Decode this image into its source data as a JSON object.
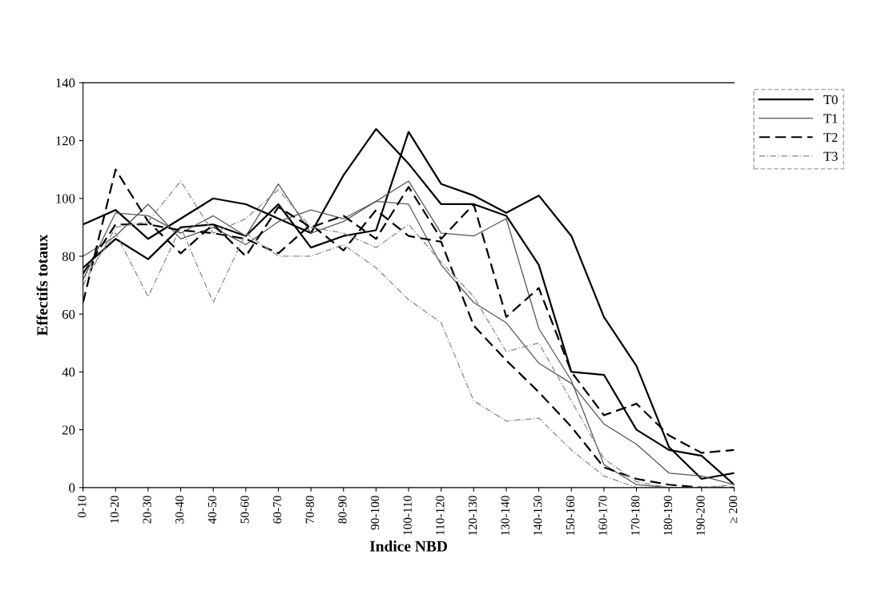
{
  "chart_data": {
    "type": "line",
    "xlabel": "Indice NBD",
    "ylabel": "Effectifs totaux",
    "categories": [
      "0-10",
      "10-20",
      "20-30",
      "30-40",
      "40-50",
      "50-60",
      "60-70",
      "70-80",
      "80-90",
      "90-100",
      "100-110",
      "110-120",
      "120-130",
      "130-140",
      "140-150",
      "150-160",
      "160-170",
      "170-180",
      "180-190",
      "190-200",
      "≥ 200"
    ],
    "ylim": [
      0,
      140
    ],
    "yticks": [
      0,
      20,
      40,
      60,
      80,
      100,
      120,
      140
    ],
    "grid": false,
    "legend": "top right",
    "marker": "none",
    "series": [
      {
        "name": "T0",
        "color": "#000000",
        "line_style": "solid",
        "values": [
          91,
          96,
          86,
          93,
          100,
          98,
          93,
          88,
          108,
          124,
          112,
          98,
          98,
          94,
          77,
          40,
          39,
          20,
          13,
          11,
          1
        ]
      },
      {
        "color": "#000000",
        "line_style": "solid",
        "values": [
          76,
          86,
          79,
          90,
          91,
          87,
          98,
          83,
          87,
          89,
          123,
          105,
          101,
          95,
          101,
          87,
          59,
          42,
          14,
          3,
          5
        ]
      },
      {
        "name": "T1",
        "color": "#555555",
        "line_style": "solid",
        "values": [
          72,
          95,
          94,
          88,
          94,
          87,
          105,
          88,
          92,
          99,
          106,
          88,
          87,
          93,
          55,
          37,
          8,
          1,
          0,
          0,
          0
        ]
      },
      {
        "color": "#555555",
        "line_style": "solid",
        "values": [
          80,
          87,
          98,
          86,
          90,
          84,
          92,
          96,
          93,
          99,
          98,
          77,
          64,
          57,
          43,
          36,
          22,
          15,
          5,
          4,
          1
        ]
      },
      {
        "name": "T2",
        "color": "#000000",
        "line_style": "dashed",
        "values": [
          64,
          110,
          92,
          81,
          91,
          80,
          97,
          90,
          94,
          86,
          104,
          86,
          98,
          59,
          69,
          40,
          25,
          29,
          18,
          12,
          13
        ]
      },
      {
        "color": "#000000",
        "line_style": "dashed",
        "values": [
          74,
          91,
          91,
          89,
          88,
          86,
          81,
          91,
          82,
          96,
          87,
          85,
          56,
          44,
          33,
          21,
          7,
          3,
          1,
          0,
          0
        ]
      },
      {
        "name": "T3",
        "color": "#888888",
        "line_style": "dotted",
        "values": [
          72,
          88,
          66,
          90,
          64,
          88,
          80,
          80,
          84,
          76,
          65,
          57,
          30,
          23,
          24,
          13,
          4,
          0,
          0,
          0,
          0
        ]
      },
      {
        "color": "#888888",
        "line_style": "dotted",
        "values": [
          70,
          90,
          92,
          106,
          88,
          93,
          103,
          90,
          88,
          83,
          91,
          78,
          66,
          47,
          50,
          30,
          10,
          2,
          0,
          0,
          1
        ]
      }
    ]
  }
}
